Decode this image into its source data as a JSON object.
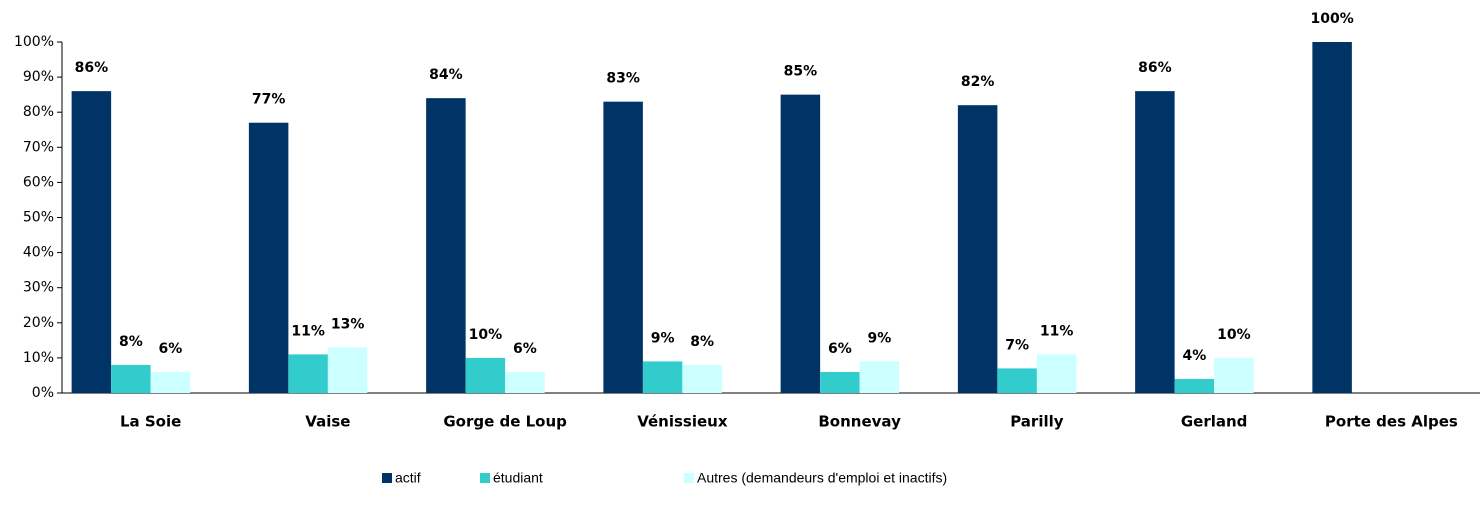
{
  "chart_data": {
    "type": "bar",
    "categories": [
      "La Soie",
      "Vaise",
      "Gorge de Loup",
      "Vénissieux",
      "Bonnevay",
      "Parilly",
      "Gerland",
      "Porte des Alpes"
    ],
    "series": [
      {
        "name": "actif",
        "color": "#003366",
        "values": [
          86,
          77,
          84,
          83,
          85,
          82,
          86,
          100
        ],
        "value_labels": [
          "86%",
          "77%",
          "84%",
          "83%",
          "85%",
          "82%",
          "86%",
          "100%"
        ]
      },
      {
        "name": "étudiant",
        "color": "#33cccc",
        "values": [
          8,
          11,
          10,
          9,
          6,
          7,
          4,
          null
        ],
        "value_labels": [
          "8%",
          "11%",
          "10%",
          "9%",
          "6%",
          "7%",
          "4%",
          null
        ]
      },
      {
        "name": "Autres (demandeurs d'emploi et inactifs)",
        "color": "#ccffff",
        "values": [
          6,
          13,
          6,
          8,
          9,
          11,
          10,
          null
        ],
        "value_labels": [
          "6%",
          "13%",
          "6%",
          "8%",
          "9%",
          "11%",
          "10%",
          null
        ]
      }
    ],
    "ylim": [
      0,
      100
    ],
    "yticks": [
      {
        "value": 0,
        "label": "0%"
      },
      {
        "value": 10,
        "label": "10%"
      },
      {
        "value": 20,
        "label": "20%"
      },
      {
        "value": 30,
        "label": "30%"
      },
      {
        "value": 40,
        "label": "40%"
      },
      {
        "value": 50,
        "label": "50%"
      },
      {
        "value": 60,
        "label": "60%"
      },
      {
        "value": 70,
        "label": "70%"
      },
      {
        "value": 80,
        "label": "80%"
      },
      {
        "value": 90,
        "label": "90%"
      },
      {
        "value": 100,
        "label": "100%"
      }
    ],
    "grid": false,
    "legend": "bottom"
  }
}
